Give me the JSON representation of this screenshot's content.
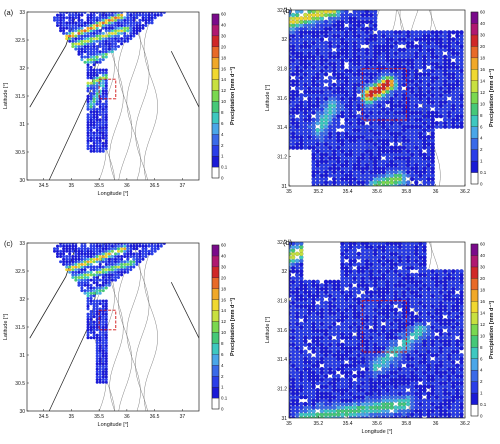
{
  "chart_data": [
    {
      "type": "scatter",
      "panel_label": "(a)",
      "xlabel": "Longitude [°]",
      "ylabel": "Latitude [°]",
      "xlim": [
        34.2,
        37.3
      ],
      "ylim": [
        30,
        33
      ],
      "xticks": [
        34.5,
        35,
        35.5,
        36,
        36.5,
        37
      ],
      "yticks": [
        30,
        30.5,
        31,
        31.5,
        32,
        32.5,
        33
      ],
      "colorbar": {
        "label": "Precipitation [mm d⁻¹]",
        "levels": [
          0,
          0.1,
          1,
          2,
          4,
          6,
          8,
          10,
          12,
          14,
          16,
          18,
          20,
          30,
          40,
          60
        ],
        "colors": [
          "#ffffff",
          "#1a1ad6",
          "#2a3ee8",
          "#3a6ae8",
          "#4aa6e8",
          "#3ec8c0",
          "#46c878",
          "#7ad850",
          "#c8e040",
          "#f0d830",
          "#f0a828",
          "#e86a28",
          "#d02828",
          "#b01870",
          "#7a0a8a"
        ]
      },
      "highlight_box": {
        "lon": [
          35.5,
          35.8
        ],
        "lat": [
          31.45,
          31.8
        ]
      },
      "ridges": [
        {
          "lon0": 34.75,
          "lat0": 32.48,
          "lon1": 35.95,
          "lat1": 32.95,
          "value": 18
        },
        {
          "lon0": 34.85,
          "lat0": 32.35,
          "lon1": 36.0,
          "lat1": 32.7,
          "value": 13
        },
        {
          "lon0": 35.0,
          "lat0": 32.05,
          "lon1": 36.4,
          "lat1": 32.45,
          "value": 10
        },
        {
          "lon0": 35.25,
          "lat0": 31.7,
          "lon1": 35.65,
          "lat1": 31.85,
          "value": 12
        },
        {
          "lon0": 35.35,
          "lat0": 31.3,
          "lon1": 35.55,
          "lat1": 31.7,
          "value": 8
        }
      ]
    },
    {
      "type": "scatter",
      "panel_label": "(b)",
      "xlabel": "",
      "ylabel": "Latitude [°]",
      "xlim": [
        35,
        36.2
      ],
      "ylim": [
        31,
        32.2
      ],
      "xticks": [
        35,
        35.2,
        35.4,
        35.6,
        35.8,
        36,
        36.2
      ],
      "yticks": [
        31,
        31.2,
        31.4,
        31.6,
        31.8,
        32,
        32.2
      ],
      "colorbar": {
        "label": "Precipitation [mm d⁻¹]",
        "levels": [
          0,
          0.1,
          1,
          2,
          4,
          6,
          8,
          10,
          12,
          14,
          16,
          18,
          20,
          30,
          40,
          60
        ]
      },
      "highlight_box": {
        "lon": [
          35.5,
          35.8
        ],
        "lat": [
          31.45,
          31.8
        ]
      },
      "ridges": [
        {
          "lon0": 35.0,
          "lat0": 32.12,
          "lon1": 35.3,
          "lat1": 32.2,
          "value": 14
        },
        {
          "lon0": 35.55,
          "lat0": 31.62,
          "lon1": 35.68,
          "lat1": 31.7,
          "value": 22
        },
        {
          "lon0": 35.6,
          "lat0": 31.0,
          "lon1": 35.75,
          "lat1": 31.05,
          "value": 10
        },
        {
          "lon0": 35.2,
          "lat0": 31.38,
          "lon1": 35.3,
          "lat1": 31.55,
          "value": 6
        }
      ]
    },
    {
      "type": "scatter",
      "panel_label": "(c)",
      "xlabel": "Longitude [°]",
      "ylabel": "Latitude [°]",
      "xlim": [
        34.2,
        37.3
      ],
      "ylim": [
        30,
        33
      ],
      "xticks": [
        34.5,
        35,
        35.5,
        36,
        36.5,
        37
      ],
      "yticks": [
        30,
        30.5,
        31,
        31.5,
        32,
        32.5,
        33
      ],
      "colorbar": {
        "label": "Precipitation [mm d⁻¹]",
        "levels": [
          0,
          0.1,
          1,
          2,
          4,
          6,
          8,
          10,
          12,
          14,
          16,
          18,
          20,
          30,
          40,
          60
        ]
      },
      "highlight_box": {
        "lon": [
          35.5,
          35.8
        ],
        "lat": [
          31.45,
          31.8
        ]
      },
      "ridges": [
        {
          "lon0": 34.75,
          "lat0": 32.45,
          "lon1": 35.95,
          "lat1": 32.9,
          "value": 16
        },
        {
          "lon0": 34.85,
          "lat0": 32.3,
          "lon1": 36.1,
          "lat1": 32.65,
          "value": 11
        },
        {
          "lon0": 35.0,
          "lat0": 32.0,
          "lon1": 36.4,
          "lat1": 32.4,
          "value": 8
        }
      ]
    },
    {
      "type": "scatter",
      "panel_label": "(d)",
      "xlabel": "Longitude [°]",
      "ylabel": "Latitude [°]",
      "xlim": [
        35,
        36.2
      ],
      "ylim": [
        31,
        32.2
      ],
      "xticks": [
        35,
        35.2,
        35.4,
        35.6,
        35.8,
        36,
        36.2
      ],
      "yticks": [
        31,
        31.2,
        31.4,
        31.6,
        31.8,
        32,
        32.2
      ],
      "colorbar": {
        "label": "Precipitation [mm d⁻¹]",
        "levels": [
          0,
          0.1,
          1,
          2,
          4,
          6,
          8,
          10,
          12,
          14,
          16,
          18,
          20,
          30,
          40,
          60
        ]
      },
      "highlight_box": {
        "lon": [
          35.5,
          35.8
        ],
        "lat": [
          31.45,
          31.8
        ]
      },
      "ridges": [
        {
          "lon0": 35.0,
          "lat0": 32.1,
          "lon1": 35.25,
          "lat1": 32.2,
          "value": 12
        },
        {
          "lon0": 35.6,
          "lat0": 31.35,
          "lon1": 35.9,
          "lat1": 31.6,
          "value": 6
        },
        {
          "lon0": 35.1,
          "lat0": 31.0,
          "lon1": 35.8,
          "lat1": 31.1,
          "value": 8
        }
      ]
    }
  ]
}
